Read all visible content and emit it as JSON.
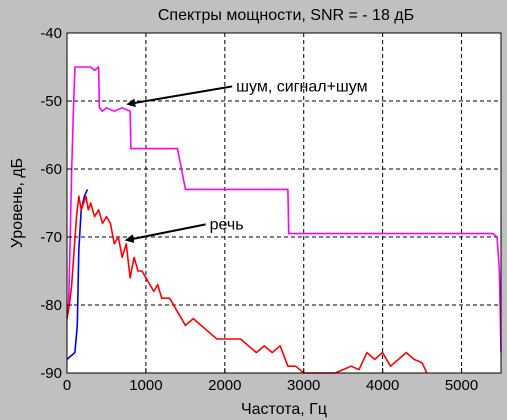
{
  "chart_data": {
    "type": "line",
    "title": "Спектры мощности, SNR = - 18 дБ",
    "xlabel": "Частота, Гц",
    "ylabel": "Уровень, дБ",
    "xlim": [
      0,
      5500
    ],
    "ylim": [
      -90,
      -40
    ],
    "xticks": [
      0,
      1000,
      2000,
      3000,
      4000,
      5000
    ],
    "yticks": [
      -40,
      -50,
      -60,
      -70,
      -80,
      -90
    ],
    "grid": true,
    "background": "#c0c0c0",
    "plot_background": "#ffffff",
    "series": [
      {
        "color": "#0000ff",
        "x": [
          0,
          50,
          100,
          130,
          150,
          180,
          220,
          260
        ],
        "y": [
          -88,
          -87.5,
          -87,
          -83,
          -72,
          -66,
          -64,
          -63
        ]
      },
      {
        "color": "#ff00ff",
        "x": [
          0,
          20,
          40,
          60,
          80,
          100,
          130,
          160,
          190,
          220,
          250,
          300,
          350,
          400,
          410,
          450,
          500,
          600,
          700,
          800,
          810,
          900,
          1000,
          1100,
          1200,
          1300,
          1400,
          1500,
          1600,
          1700,
          1800,
          1900,
          2000,
          2100,
          2200,
          2300,
          2400,
          2500,
          2600,
          2700,
          2800,
          2810,
          2900,
          3000,
          3200,
          3400,
          3600,
          3800,
          4000,
          4200,
          4400,
          4600,
          4800,
          5000,
          5200,
          5400,
          5450,
          5480,
          5500
        ],
        "y": [
          -82,
          -80,
          -70,
          -60,
          -52,
          -45,
          -45,
          -45,
          -45,
          -45,
          -45,
          -45,
          -45.5,
          -45,
          -51,
          -51.5,
          -51,
          -51.5,
          -51,
          -51.5,
          -57,
          -57,
          -57,
          -57,
          -57,
          -57,
          -57,
          -63,
          -63,
          -63,
          -63,
          -63,
          -63,
          -63,
          -63,
          -63,
          -63,
          -63,
          -63,
          -63,
          -63,
          -69.5,
          -69.5,
          -69.5,
          -69.5,
          -69.5,
          -69.5,
          -69.5,
          -69.5,
          -69.5,
          -69.5,
          -69.5,
          -69.5,
          -69.5,
          -69.5,
          -69.5,
          -70,
          -75,
          -87
        ]
      },
      {
        "color": "#ff0000",
        "x": [
          0,
          30,
          60,
          90,
          120,
          150,
          180,
          210,
          240,
          270,
          300,
          350,
          400,
          450,
          500,
          550,
          600,
          650,
          700,
          750,
          800,
          850,
          900,
          950,
          1000,
          1050,
          1100,
          1150,
          1200,
          1300,
          1400,
          1500,
          1600,
          1700,
          1800,
          1900,
          2000,
          2100,
          2200,
          2300,
          2400,
          2500,
          2600,
          2700,
          2800,
          2900,
          3000,
          3100,
          3200,
          3300,
          3400,
          3500,
          3600,
          3700,
          3800,
          3900,
          4000,
          4100,
          4200,
          4300,
          4400,
          4500,
          4560
        ],
        "y": [
          -82,
          -80,
          -77,
          -72,
          -67,
          -64,
          -66,
          -65,
          -64,
          -66,
          -65,
          -67,
          -66,
          -68,
          -67,
          -68,
          -71,
          -70,
          -73,
          -71,
          -76,
          -73,
          -75,
          -75,
          -76,
          -77,
          -78,
          -77,
          -79,
          -79,
          -81,
          -83,
          -82,
          -83,
          -84,
          -85,
          -85,
          -85,
          -85,
          -86,
          -87,
          -86,
          -87,
          -86,
          -89,
          -89,
          -90,
          -90,
          -90,
          -90,
          -90,
          -89.5,
          -89,
          -89.5,
          -87,
          -88,
          -87,
          -89,
          -88,
          -87,
          -88,
          -88.5,
          -90
        ]
      }
    ],
    "annotations": [
      {
        "text": "шум, сигнал+шум",
        "x": 750,
        "y": -50.5
      },
      {
        "text": "речь",
        "x": 730,
        "y": -70.5
      }
    ]
  }
}
